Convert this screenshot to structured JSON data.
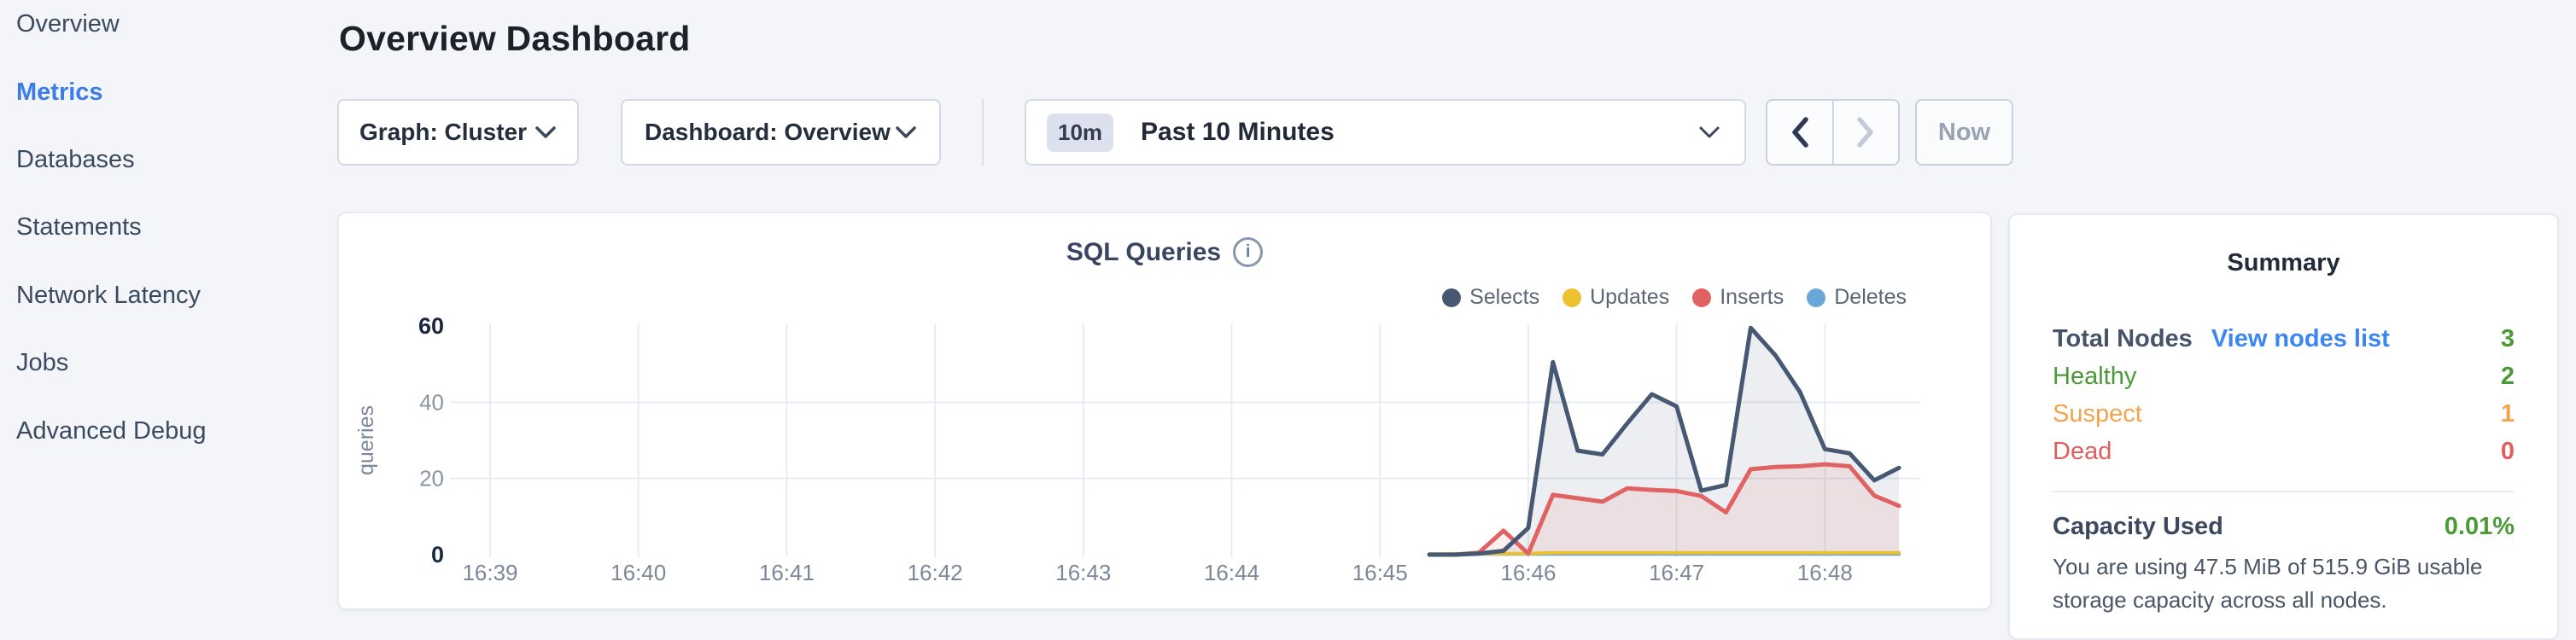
{
  "colors": {
    "accent_blue": "#3d7de9",
    "link_blue": "#3b86f2",
    "green": "#4b9a38",
    "orange": "#f0a44e",
    "red": "#e25d5d",
    "dark_slate": "#47536a",
    "selects": "#475872",
    "updates": "#edc02f",
    "inserts": "#e06262",
    "deletes": "#67a7da"
  },
  "sidebar": {
    "items": [
      {
        "label": "Overview",
        "active": false
      },
      {
        "label": "Metrics",
        "active": true
      },
      {
        "label": "Databases",
        "active": false
      },
      {
        "label": "Statements",
        "active": false
      },
      {
        "label": "Network Latency",
        "active": false
      },
      {
        "label": "Jobs",
        "active": false
      },
      {
        "label": "Advanced Debug",
        "active": false
      }
    ]
  },
  "header": {
    "title": "Overview Dashboard"
  },
  "toolbar": {
    "graph_dropdown_label": "Graph: Cluster",
    "dashboard_dropdown_label": "Dashboard: Overview",
    "time_badge": "10m",
    "time_label": "Past 10 Minutes",
    "now_label": "Now"
  },
  "chart_data": {
    "type": "area",
    "title": "SQL Queries",
    "ylabel": "queries",
    "ylim": [
      0,
      60
    ],
    "yticks": [
      0,
      20,
      40,
      60
    ],
    "xticks": [
      "16:39",
      "16:40",
      "16:41",
      "16:42",
      "16:43",
      "16:44",
      "16:45",
      "16:46",
      "16:47",
      "16:48"
    ],
    "grid": true,
    "legend_position": "top-right",
    "series": [
      {
        "name": "Selects",
        "color": "#475872",
        "fill": true,
        "points": [
          [
            "16:45:20",
            0
          ],
          [
            "16:45:30",
            0
          ],
          [
            "16:45:40",
            0.3
          ],
          [
            "16:45:50",
            1
          ],
          [
            "16:46:00",
            7
          ],
          [
            "16:46:10",
            50.5
          ],
          [
            "16:46:20",
            27.3
          ],
          [
            "16:46:30",
            26.3
          ],
          [
            "16:46:40",
            34.4
          ],
          [
            "16:46:50",
            42.1
          ],
          [
            "16:47:00",
            38.9
          ],
          [
            "16:47:10",
            16.8
          ],
          [
            "16:47:20",
            18.3
          ],
          [
            "16:47:30",
            59.5
          ],
          [
            "16:47:40",
            52.3
          ],
          [
            "16:47:50",
            42.6
          ],
          [
            "16:48:00",
            27.7
          ],
          [
            "16:48:10",
            26.6
          ],
          [
            "16:48:20",
            19.5
          ],
          [
            "16:48:30",
            22.8
          ]
        ]
      },
      {
        "name": "Updates",
        "color": "#edc02f",
        "fill": false,
        "points": [
          [
            "16:45:20",
            0.2
          ],
          [
            "16:45:30",
            0.2
          ],
          [
            "16:45:40",
            0.3
          ],
          [
            "16:45:50",
            0.3
          ],
          [
            "16:46:00",
            0.3
          ],
          [
            "16:46:10",
            0.5
          ],
          [
            "16:46:20",
            0.5
          ],
          [
            "16:46:30",
            0.5
          ],
          [
            "16:46:40",
            0.5
          ],
          [
            "16:46:50",
            0.5
          ],
          [
            "16:47:00",
            0.5
          ],
          [
            "16:47:10",
            0.5
          ],
          [
            "16:47:20",
            0.5
          ],
          [
            "16:47:30",
            0.5
          ],
          [
            "16:47:40",
            0.5
          ],
          [
            "16:47:50",
            0.5
          ],
          [
            "16:48:00",
            0.5
          ],
          [
            "16:48:10",
            0.5
          ],
          [
            "16:48:20",
            0.5
          ],
          [
            "16:48:30",
            0.5
          ]
        ]
      },
      {
        "name": "Inserts",
        "color": "#e06262",
        "fill": true,
        "points": [
          [
            "16:45:20",
            0
          ],
          [
            "16:45:30",
            0
          ],
          [
            "16:45:40",
            0.5
          ],
          [
            "16:45:50",
            6.3
          ],
          [
            "16:46:00",
            0.3
          ],
          [
            "16:46:10",
            15.7
          ],
          [
            "16:46:20",
            14.8
          ],
          [
            "16:46:30",
            13.9
          ],
          [
            "16:46:40",
            17.4
          ],
          [
            "16:46:50",
            17.0
          ],
          [
            "16:47:00",
            16.7
          ],
          [
            "16:47:10",
            15.4
          ],
          [
            "16:47:20",
            11.1
          ],
          [
            "16:47:30",
            22.4
          ],
          [
            "16:47:40",
            23.0
          ],
          [
            "16:47:50",
            23.2
          ],
          [
            "16:48:00",
            23.7
          ],
          [
            "16:48:10",
            23.2
          ],
          [
            "16:48:20",
            15.5
          ],
          [
            "16:48:30",
            12.8
          ]
        ]
      },
      {
        "name": "Deletes",
        "color": "#67a7da",
        "fill": false,
        "points": [
          [
            "16:45:20",
            0.15
          ],
          [
            "16:45:30",
            0.15
          ],
          [
            "16:45:40",
            0.15
          ],
          [
            "16:45:50",
            0.15
          ],
          [
            "16:46:00",
            0.15
          ],
          [
            "16:46:10",
            0.15
          ],
          [
            "16:46:20",
            0.15
          ],
          [
            "16:46:30",
            0.15
          ],
          [
            "16:46:40",
            0.15
          ],
          [
            "16:46:50",
            0.15
          ],
          [
            "16:47:00",
            0.15
          ],
          [
            "16:47:10",
            0.15
          ],
          [
            "16:47:20",
            0.15
          ],
          [
            "16:47:30",
            0.15
          ],
          [
            "16:47:40",
            0.15
          ],
          [
            "16:47:50",
            0.15
          ],
          [
            "16:48:00",
            0.15
          ],
          [
            "16:48:10",
            0.15
          ],
          [
            "16:48:20",
            0.15
          ],
          [
            "16:48:30",
            0.15
          ]
        ]
      }
    ]
  },
  "summary": {
    "title": "Summary",
    "rows": [
      {
        "label": "Total Nodes",
        "bold": true,
        "label_color": "#47536a",
        "link": "View nodes list",
        "link_color": "#3b86f2",
        "value": "3",
        "value_color": "#4b9a38"
      },
      {
        "label": "Healthy",
        "bold": false,
        "label_color": "#4b9a38",
        "value": "2",
        "value_color": "#4b9a38"
      },
      {
        "label": "Suspect",
        "bold": false,
        "label_color": "#f0a44e",
        "value": "1",
        "value_color": "#f0a44e"
      },
      {
        "label": "Dead",
        "bold": false,
        "label_color": "#e25d5d",
        "value": "0",
        "value_color": "#e25d5d"
      }
    ],
    "capacity": {
      "label": "Capacity Used",
      "value": "0.01%",
      "value_color": "#4b9a38",
      "description": "You are using 47.5 MiB of 515.9 GiB usable storage capacity across all nodes."
    }
  }
}
